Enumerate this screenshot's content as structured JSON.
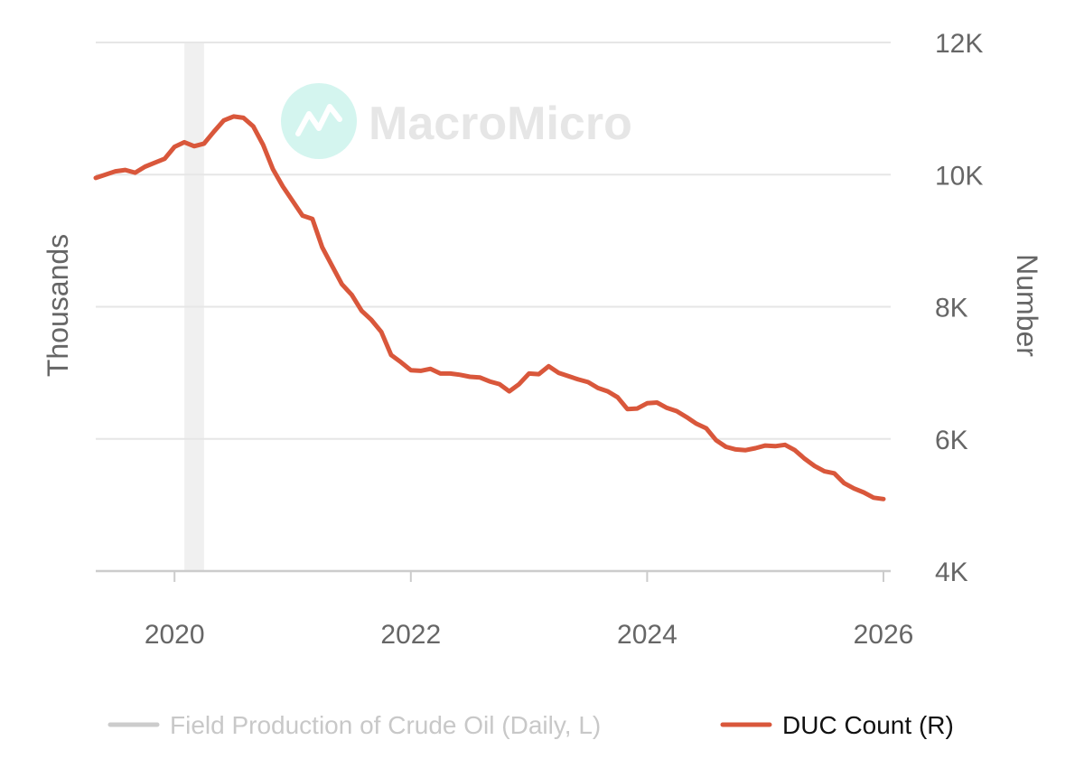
{
  "chart_data": {
    "type": "line",
    "title": "",
    "yaxis_left": {
      "label": "Thousands",
      "ticks": []
    },
    "yaxis_right": {
      "label": "Number",
      "ticks": [
        "4K",
        "6K",
        "8K",
        "10K",
        "12K"
      ],
      "ylim": [
        4000,
        12000
      ]
    },
    "xaxis": {
      "ticks": [
        "2020",
        "2022",
        "2024",
        "2026"
      ],
      "xlim": [
        "2019-05",
        "2026-01"
      ]
    },
    "grid": true,
    "watermark": "MacroMicro",
    "shaded_periods": [
      {
        "start": "2020-02",
        "end": "2020-04",
        "color": "#f0f0f0"
      }
    ],
    "legend": {
      "placement": "bottom"
    },
    "series": [
      {
        "name": "Field Production of Crude Oil (Daily, L)",
        "axis": "left",
        "color": "#cccccc",
        "legend_text_color": "#c8c8c8",
        "points": []
      },
      {
        "name": "DUC Count (R)",
        "axis": "right",
        "color": "#d9573b",
        "legend_text_color": "#111111",
        "points": [
          [
            "2019-05",
            9950
          ],
          [
            "2019-06",
            10000
          ],
          [
            "2019-07",
            10050
          ],
          [
            "2019-08",
            10070
          ],
          [
            "2019-09",
            10030
          ],
          [
            "2019-10",
            10120
          ],
          [
            "2019-11",
            10180
          ],
          [
            "2019-12",
            10240
          ],
          [
            "2020-01",
            10420
          ],
          [
            "2020-02",
            10490
          ],
          [
            "2020-03",
            10430
          ],
          [
            "2020-04",
            10470
          ],
          [
            "2020-05",
            10650
          ],
          [
            "2020-06",
            10820
          ],
          [
            "2020-07",
            10880
          ],
          [
            "2020-08",
            10860
          ],
          [
            "2020-09",
            10730
          ],
          [
            "2020-10",
            10450
          ],
          [
            "2020-11",
            10080
          ],
          [
            "2020-12",
            9820
          ],
          [
            "2021-01",
            9600
          ],
          [
            "2021-02",
            9380
          ],
          [
            "2021-03",
            9330
          ],
          [
            "2021-04",
            8900
          ],
          [
            "2021-05",
            8620
          ],
          [
            "2021-06",
            8340
          ],
          [
            "2021-07",
            8180
          ],
          [
            "2021-08",
            7940
          ],
          [
            "2021-09",
            7800
          ],
          [
            "2021-10",
            7620
          ],
          [
            "2021-11",
            7270
          ],
          [
            "2021-12",
            7160
          ],
          [
            "2022-01",
            7040
          ],
          [
            "2022-02",
            7030
          ],
          [
            "2022-03",
            7060
          ],
          [
            "2022-04",
            6990
          ],
          [
            "2022-05",
            6990
          ],
          [
            "2022-06",
            6970
          ],
          [
            "2022-07",
            6940
          ],
          [
            "2022-08",
            6930
          ],
          [
            "2022-09",
            6870
          ],
          [
            "2022-10",
            6830
          ],
          [
            "2022-11",
            6720
          ],
          [
            "2022-12",
            6830
          ],
          [
            "2023-01",
            6990
          ],
          [
            "2023-02",
            6980
          ],
          [
            "2023-03",
            7100
          ],
          [
            "2023-04",
            7000
          ],
          [
            "2023-05",
            6950
          ],
          [
            "2023-06",
            6900
          ],
          [
            "2023-07",
            6860
          ],
          [
            "2023-08",
            6770
          ],
          [
            "2023-09",
            6720
          ],
          [
            "2023-10",
            6630
          ],
          [
            "2023-11",
            6450
          ],
          [
            "2023-12",
            6460
          ],
          [
            "2024-01",
            6540
          ],
          [
            "2024-02",
            6550
          ],
          [
            "2024-03",
            6470
          ],
          [
            "2024-04",
            6420
          ],
          [
            "2024-05",
            6330
          ],
          [
            "2024-06",
            6230
          ],
          [
            "2024-07",
            6160
          ],
          [
            "2024-08",
            5980
          ],
          [
            "2024-09",
            5880
          ],
          [
            "2024-10",
            5840
          ],
          [
            "2024-11",
            5830
          ],
          [
            "2024-12",
            5860
          ],
          [
            "2025-01",
            5900
          ],
          [
            "2025-02",
            5890
          ],
          [
            "2025-03",
            5910
          ],
          [
            "2025-04",
            5830
          ],
          [
            "2025-05",
            5700
          ],
          [
            "2025-06",
            5590
          ],
          [
            "2025-07",
            5510
          ],
          [
            "2025-08",
            5480
          ],
          [
            "2025-09",
            5330
          ],
          [
            "2025-10",
            5250
          ],
          [
            "2025-11",
            5190
          ],
          [
            "2025-12",
            5110
          ],
          [
            "2026-01",
            5090
          ]
        ]
      }
    ]
  }
}
